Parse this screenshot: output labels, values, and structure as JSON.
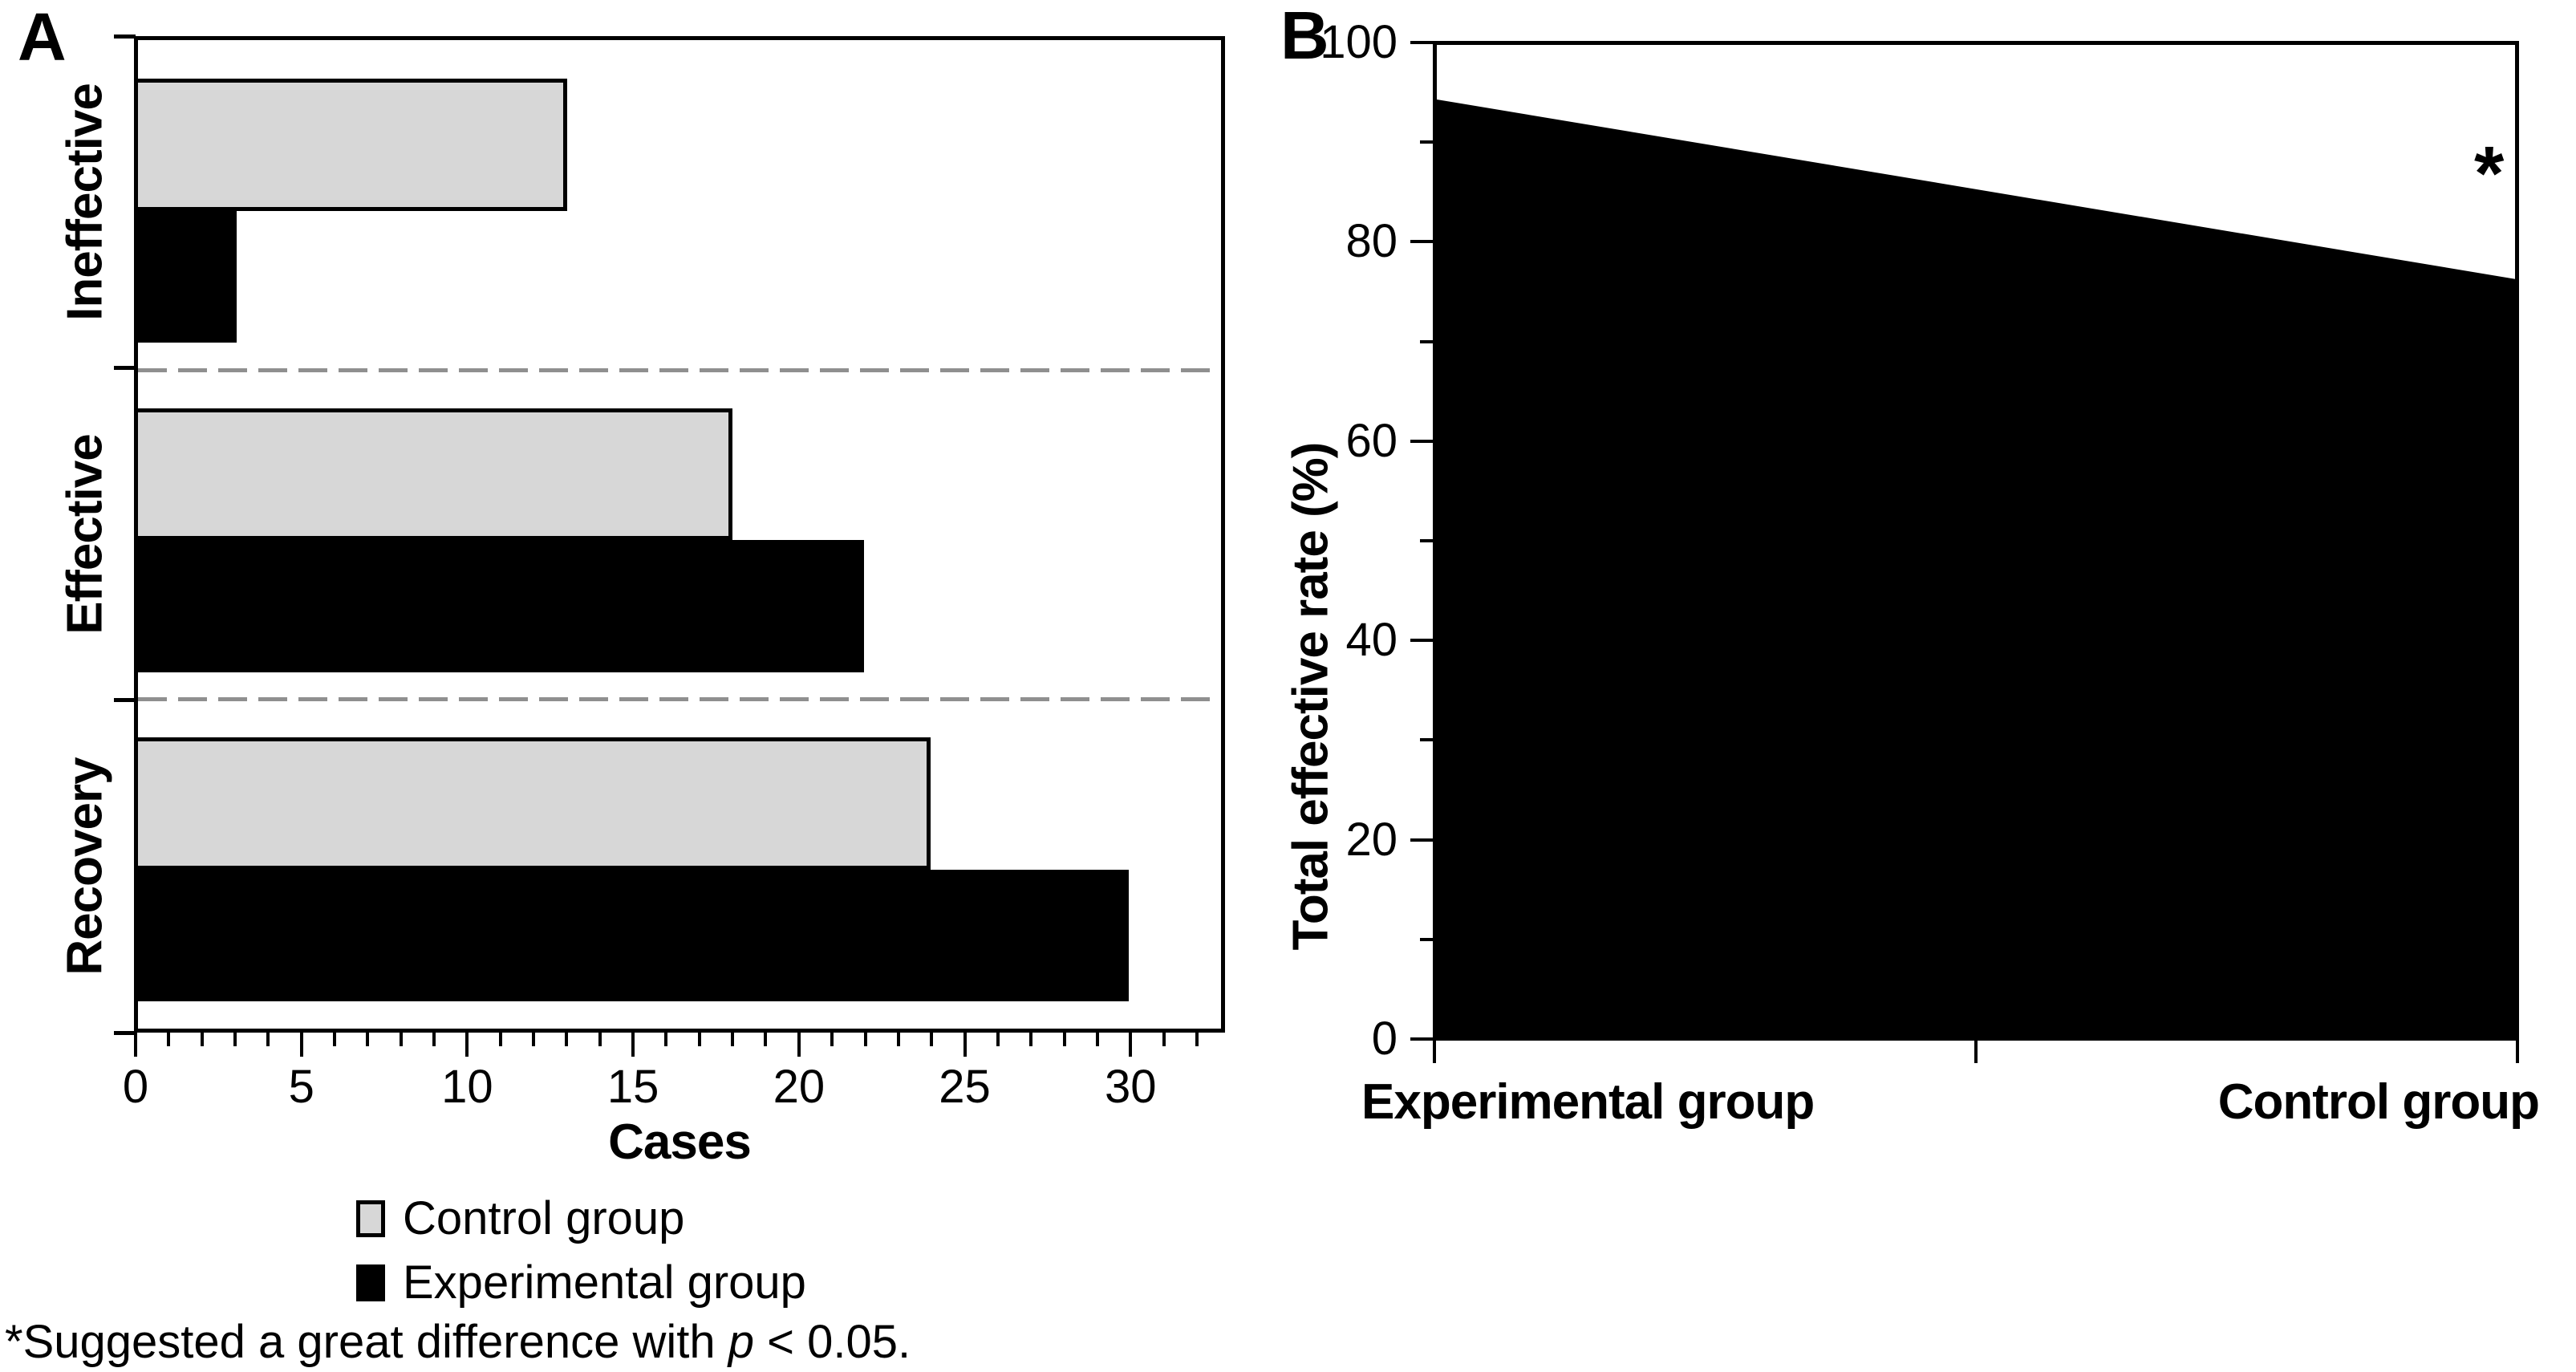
{
  "panels": {
    "a": {
      "letter": "A"
    },
    "b": {
      "letter": "B"
    }
  },
  "chart_data": [
    {
      "type": "bar",
      "panel": "A",
      "orientation": "horizontal",
      "categories": [
        "Ineffective",
        "Effective",
        "Recovery"
      ],
      "series": [
        {
          "name": "Control group",
          "color": "#d7d7d7",
          "values": [
            13,
            18,
            24
          ]
        },
        {
          "name": "Experimental group",
          "color": "#000000",
          "values": [
            3,
            22,
            30
          ]
        }
      ],
      "xlabel": "Cases",
      "xlim": [
        0,
        32.8
      ],
      "xticks": [
        0,
        5,
        10,
        15,
        20,
        25,
        30
      ],
      "minor_tick_step": 1,
      "category_separators": "dashed",
      "separator_color": "#8f8f8f",
      "legend_position": "below"
    },
    {
      "type": "area",
      "panel": "B",
      "categories": [
        "Experimental group",
        "Control group"
      ],
      "values": [
        94.5,
        76.4
      ],
      "ylabel": "Total effective rate (%)",
      "ylim": [
        0,
        100
      ],
      "yticks": [
        0,
        20,
        40,
        60,
        80,
        100
      ],
      "minor_tick_step": 10,
      "fill_color": "#000000",
      "annotation": {
        "text": "*",
        "location": "top-right-near-control-group"
      }
    }
  ],
  "legend": {
    "items": [
      {
        "label": "Control group",
        "color": "#d7d7d7",
        "border": "#000000"
      },
      {
        "label": "Experimental group",
        "color": "#000000",
        "border": "#000000"
      }
    ]
  },
  "footnote": {
    "prefix": "*Suggested a great difference with ",
    "italic": "p",
    "suffix": " < 0.05."
  }
}
